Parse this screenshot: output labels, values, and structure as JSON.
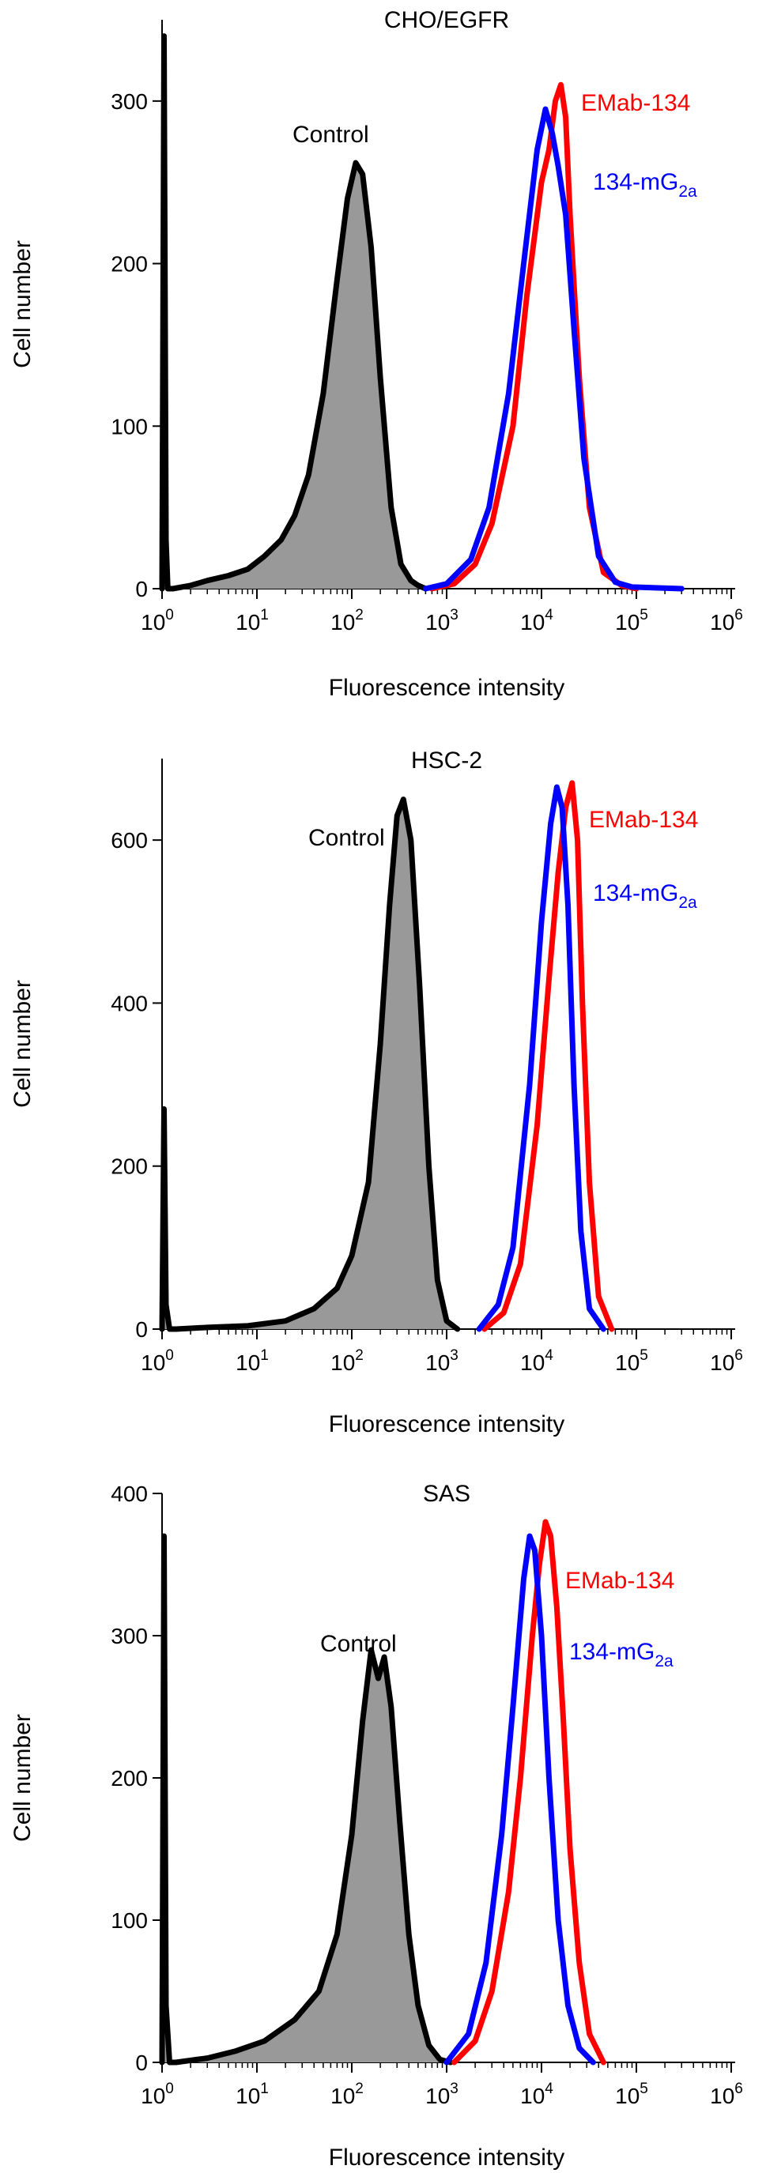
{
  "chart_data": [
    {
      "type": "area",
      "title": "CHO/EGFR",
      "xlabel": "Fluorescence intensity",
      "ylabel": "Cell number",
      "x_scale": "log",
      "xlim": [
        1,
        1000000
      ],
      "ylim": [
        0,
        350
      ],
      "x_ticks": [
        {
          "value": 1,
          "base": "10",
          "exp": "0"
        },
        {
          "value": 10,
          "base": "10",
          "exp": "1"
        },
        {
          "value": 100,
          "base": "10",
          "exp": "2"
        },
        {
          "value": 1000,
          "base": "10",
          "exp": "3"
        },
        {
          "value": 10000,
          "base": "10",
          "exp": "4"
        },
        {
          "value": 100000,
          "base": "10",
          "exp": "5"
        },
        {
          "value": 1000000,
          "base": "10",
          "exp": "6"
        }
      ],
      "y_ticks": [
        0,
        100,
        200,
        300
      ],
      "grid": false,
      "series": [
        {
          "name": "Control",
          "color": "#000000",
          "fill": "#999999",
          "x": [
            1,
            1.05,
            1.1,
            1.15,
            1.3,
            2,
            3,
            5,
            8,
            12,
            18,
            25,
            35,
            50,
            70,
            90,
            110,
            130,
            160,
            200,
            260,
            330,
            420,
            500,
            600
          ],
          "y": [
            0,
            340,
            30,
            0,
            0,
            2,
            5,
            8,
            12,
            20,
            30,
            45,
            70,
            120,
            190,
            240,
            262,
            255,
            210,
            130,
            50,
            15,
            5,
            2,
            0
          ]
        },
        {
          "name": "EMab-134",
          "color": "#ff0000",
          "x": [
            700,
            1200,
            2000,
            3000,
            5000,
            7000,
            10000,
            12000,
            14000,
            16000,
            18000,
            20000,
            25000,
            32000,
            45000,
            70000,
            100000
          ],
          "y": [
            0,
            3,
            15,
            40,
            100,
            180,
            250,
            270,
            300,
            310,
            290,
            230,
            130,
            50,
            10,
            2,
            0
          ]
        },
        {
          "name": "134-mG2a",
          "color": "#0000ff",
          "x": [
            600,
            1000,
            1800,
            2800,
            4500,
            6500,
            9000,
            11000,
            13000,
            15000,
            18000,
            22000,
            28000,
            40000,
            60000,
            90000,
            300000
          ],
          "y": [
            0,
            3,
            18,
            50,
            120,
            200,
            270,
            295,
            280,
            260,
            230,
            160,
            80,
            20,
            4,
            1,
            0
          ]
        }
      ],
      "annotations": [
        {
          "text": "Control",
          "color": "#000000"
        },
        {
          "text": "EMab-134",
          "color": "#ff0000"
        },
        {
          "text": "134-mG",
          "sub": "2a",
          "color": "#0000ff"
        }
      ]
    },
    {
      "type": "area",
      "title": "HSC-2",
      "xlabel": "Fluorescence intensity",
      "ylabel": "Cell number",
      "x_scale": "log",
      "xlim": [
        1,
        1000000
      ],
      "ylim": [
        0,
        700
      ],
      "x_ticks": [
        {
          "value": 1,
          "base": "10",
          "exp": "0"
        },
        {
          "value": 10,
          "base": "10",
          "exp": "1"
        },
        {
          "value": 100,
          "base": "10",
          "exp": "2"
        },
        {
          "value": 1000,
          "base": "10",
          "exp": "3"
        },
        {
          "value": 10000,
          "base": "10",
          "exp": "4"
        },
        {
          "value": 100000,
          "base": "10",
          "exp": "5"
        },
        {
          "value": 1000000,
          "base": "10",
          "exp": "6"
        }
      ],
      "y_ticks": [
        0,
        200,
        400,
        600
      ],
      "grid": false,
      "series": [
        {
          "name": "Control",
          "color": "#000000",
          "fill": "#999999",
          "x": [
            1,
            1.05,
            1.1,
            1.2,
            1.4,
            3,
            8,
            20,
            40,
            70,
            100,
            150,
            200,
            250,
            300,
            350,
            420,
            520,
            650,
            800,
            1000,
            1300
          ],
          "y": [
            0,
            270,
            30,
            0,
            0,
            2,
            4,
            10,
            25,
            50,
            90,
            180,
            350,
            520,
            630,
            650,
            600,
            420,
            200,
            60,
            10,
            0
          ]
        },
        {
          "name": "EMab-134",
          "color": "#ff0000",
          "x": [
            2500,
            4000,
            6000,
            9000,
            12000,
            15000,
            18000,
            21000,
            24000,
            27000,
            32000,
            40000,
            55000
          ],
          "y": [
            0,
            20,
            80,
            250,
            430,
            560,
            640,
            670,
            600,
            400,
            180,
            40,
            0
          ]
        },
        {
          "name": "134-mG2a",
          "color": "#0000ff",
          "x": [
            2200,
            3500,
            5000,
            7500,
            10000,
            12500,
            14500,
            16500,
            19000,
            22000,
            26000,
            32000,
            45000
          ],
          "y": [
            0,
            30,
            100,
            300,
            500,
            620,
            665,
            640,
            520,
            300,
            120,
            25,
            0
          ]
        }
      ],
      "annotations": [
        {
          "text": "Control",
          "color": "#000000"
        },
        {
          "text": "EMab-134",
          "color": "#ff0000"
        },
        {
          "text": "134-mG",
          "sub": "2a",
          "color": "#0000ff"
        }
      ]
    },
    {
      "type": "area",
      "title": "SAS",
      "xlabel": "Fluorescence intensity",
      "ylabel": "Cell number",
      "x_scale": "log",
      "xlim": [
        1,
        1000000
      ],
      "ylim": [
        0,
        400
      ],
      "x_ticks": [
        {
          "value": 1,
          "base": "10",
          "exp": "0"
        },
        {
          "value": 10,
          "base": "10",
          "exp": "1"
        },
        {
          "value": 100,
          "base": "10",
          "exp": "2"
        },
        {
          "value": 1000,
          "base": "10",
          "exp": "3"
        },
        {
          "value": 10000,
          "base": "10",
          "exp": "4"
        },
        {
          "value": 100000,
          "base": "10",
          "exp": "5"
        },
        {
          "value": 1000000,
          "base": "10",
          "exp": "6"
        }
      ],
      "y_ticks": [
        0,
        100,
        200,
        300,
        400
      ],
      "grid": false,
      "series": [
        {
          "name": "Control",
          "color": "#000000",
          "fill": "#999999",
          "x": [
            1,
            1.05,
            1.1,
            1.2,
            1.4,
            3,
            6,
            12,
            25,
            45,
            70,
            100,
            130,
            160,
            190,
            220,
            260,
            320,
            400,
            500,
            650,
            850,
            1100
          ],
          "y": [
            0,
            370,
            40,
            0,
            0,
            3,
            8,
            15,
            30,
            50,
            90,
            160,
            240,
            290,
            270,
            285,
            250,
            170,
            90,
            40,
            12,
            2,
            0
          ]
        },
        {
          "name": "EMab-134",
          "color": "#ff0000",
          "x": [
            1200,
            2000,
            3000,
            4500,
            6000,
            8000,
            9500,
            11000,
            12500,
            14500,
            17000,
            20000,
            25000,
            32000,
            45000
          ],
          "y": [
            0,
            15,
            50,
            120,
            200,
            300,
            350,
            380,
            370,
            320,
            240,
            150,
            70,
            20,
            0
          ]
        },
        {
          "name": "134-mG2a",
          "color": "#0000ff",
          "x": [
            1000,
            1700,
            2600,
            3800,
            5000,
            6500,
            7500,
            8500,
            10000,
            12000,
            15000,
            19000,
            25000,
            35000
          ],
          "y": [
            0,
            20,
            70,
            160,
            250,
            340,
            370,
            360,
            300,
            200,
            100,
            40,
            10,
            0
          ]
        }
      ],
      "annotations": [
        {
          "text": "Control",
          "color": "#000000"
        },
        {
          "text": "EMab-134",
          "color": "#ff0000"
        },
        {
          "text": "134-mG",
          "sub": "2a",
          "color": "#0000ff"
        }
      ]
    }
  ]
}
